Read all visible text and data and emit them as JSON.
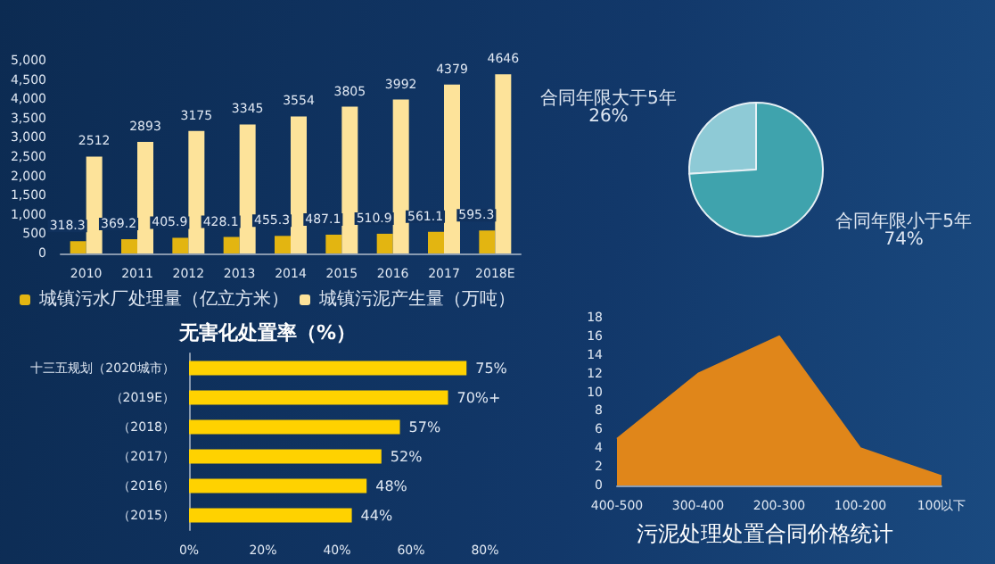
{
  "chart_data": [
    {
      "type": "bar",
      "categories": [
        "2010",
        "2011",
        "2012",
        "2013",
        "2014",
        "2015",
        "2016",
        "2017",
        "2018E"
      ],
      "series": [
        {
          "name": "城镇污水厂处理量（亿立方米）",
          "color": "#e3b511",
          "values": [
            318.3,
            369.2,
            405.9,
            428.1,
            455.3,
            487.1,
            510.9,
            561.1,
            595.3
          ]
        },
        {
          "name": "城镇污泥产生量（万吨）",
          "color": "#fde39a",
          "values": [
            2512,
            2893,
            3175,
            3345,
            3554,
            3805,
            3992,
            4379,
            4646
          ]
        }
      ],
      "ylim": [
        0,
        5000
      ],
      "yticks": [
        {
          "value": 0,
          "label": "0"
        },
        {
          "value": 500,
          "label": "500"
        },
        {
          "value": 1000,
          "label": "1,000"
        },
        {
          "value": 1500,
          "label": "1,500"
        },
        {
          "value": 2000,
          "label": "2,000"
        },
        {
          "value": 2500,
          "label": "2,500"
        },
        {
          "value": 3000,
          "label": "3,000"
        },
        {
          "value": 3500,
          "label": "3,500"
        },
        {
          "value": 4000,
          "label": "4,000"
        },
        {
          "value": 4500,
          "label": "4,500"
        },
        {
          "value": 5000,
          "label": "5,000"
        }
      ],
      "data_labels": true,
      "legend": "bottom",
      "grid": false
    },
    {
      "type": "bar",
      "orientation": "horizontal",
      "title": "无害化处置率（%）",
      "categories": [
        "十三五规划（2020城市）",
        "（2019E）",
        "（2018）",
        "（2017）",
        "（2016）",
        "（2015）"
      ],
      "values": [
        75,
        70,
        57,
        52,
        48,
        44
      ],
      "value_labels": [
        "75%",
        "70%+",
        "57%",
        "52%",
        "48%",
        "44%"
      ],
      "color": "#ffd200",
      "xlim": [
        0,
        80
      ],
      "xticks": [
        {
          "value": 0,
          "label": "0%"
        },
        {
          "value": 20,
          "label": "20%"
        },
        {
          "value": 40,
          "label": "40%"
        },
        {
          "value": 60,
          "label": "60%"
        },
        {
          "value": 80,
          "label": "80%"
        }
      ],
      "grid": false
    },
    {
      "type": "pie",
      "categories": [
        "合同年限大于5年",
        "合同年限小于5年"
      ],
      "values": [
        26,
        74
      ],
      "value_labels": [
        "26%",
        "74%"
      ],
      "colors": [
        "#8ecad6",
        "#3fa3ad"
      ]
    },
    {
      "type": "area",
      "title": "污泥处理处置合同价格统计",
      "categories": [
        "400-500",
        "300-400",
        "200-300",
        "100-200",
        "100以下"
      ],
      "values": [
        5,
        12,
        16,
        4,
        1
      ],
      "color": "#e0861a",
      "ylim": [
        0,
        18
      ],
      "yticks": [
        0,
        2,
        4,
        6,
        8,
        10,
        12,
        14,
        16,
        18
      ],
      "grid": false,
      "marker": "none"
    }
  ]
}
